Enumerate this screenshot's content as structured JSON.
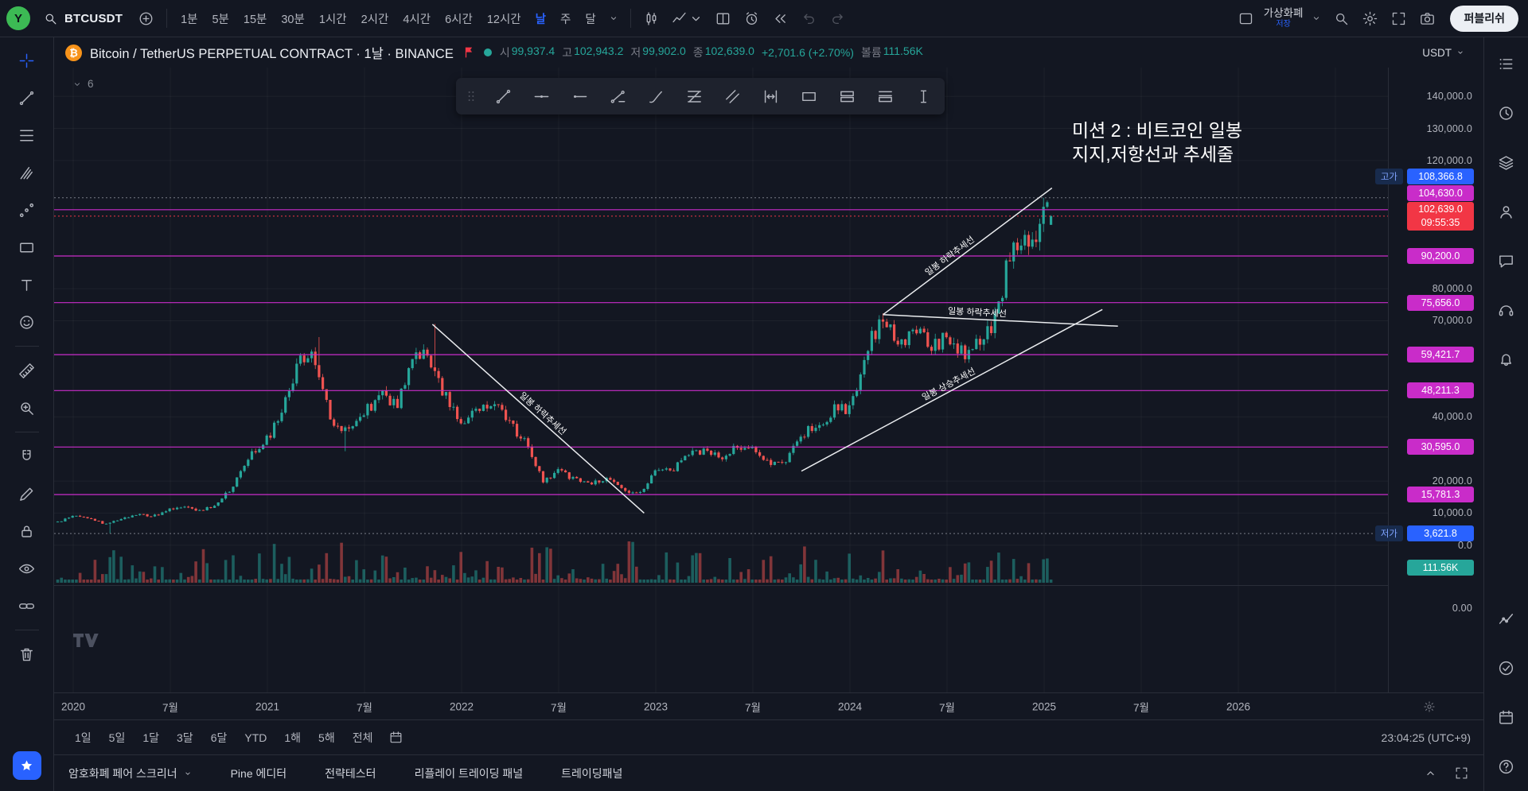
{
  "colors": {
    "accent": "#2962ff",
    "up": "#26a69a",
    "down": "#ef5350",
    "level": "#c92cc9",
    "last": "#f23645",
    "high_low": "#2962ff",
    "volume_badge": "#26a69a",
    "trendline": "#eaecef"
  },
  "topbar": {
    "avatar_letter": "Y",
    "symbol": "BTCUSDT",
    "intervals": [
      "1분",
      "5분",
      "15분",
      "30분",
      "1시간",
      "2시간",
      "4시간",
      "6시간",
      "12시간",
      "날",
      "주",
      "달"
    ],
    "active_interval": "날",
    "layout_name": "가상화폐",
    "save_label": "저장",
    "publish_label": "퍼블리쉬",
    "actions": [
      {
        "name": "chart-style-button",
        "icon": "candles"
      },
      {
        "name": "chart-type-button",
        "icon": "chart-style",
        "chevron": true
      },
      {
        "name": "multichart-layout-button",
        "icon": "grid-layout"
      },
      {
        "name": "alert-button",
        "icon": "alarm"
      },
      {
        "name": "bar-replay-button",
        "icon": "replay"
      },
      {
        "name": "undo-button",
        "icon": "undo",
        "disabled": true
      },
      {
        "name": "redo-button",
        "icon": "redo",
        "disabled": true
      }
    ],
    "utilities": [
      {
        "name": "quick-search-button",
        "icon": "search"
      },
      {
        "name": "chart-settings-button",
        "icon": "gear"
      },
      {
        "name": "fullscreen-button",
        "icon": "fullscreen"
      },
      {
        "name": "snapshot-button",
        "icon": "camera"
      }
    ]
  },
  "chart_header": {
    "symbol_icon": "₿",
    "title": "Bitcoin / TetherUS PERPETUAL CONTRACT · 1날 · BINANCE",
    "collapsed_count": "6",
    "currency": "USDT",
    "ohlc": {
      "o_label": "시",
      "o": "99,937.4",
      "h_label": "고",
      "h": "102,943.2",
      "l_label": "저",
      "l": "99,902.0",
      "c_label": "종",
      "c": "102,639.0",
      "chg": "+2,701.6 (+2.70%)",
      "vol_label": "볼륨",
      "vol": "111.56K"
    }
  },
  "annotation": {
    "line1": "미션 2 : 비트코인 일봉",
    "line2": "지지,저항선과 추세줄"
  },
  "left_toolbar": {
    "tools": [
      {
        "name": "crosshair-cursor",
        "icon": "crosshair",
        "active": true
      },
      {
        "name": "trend-line-tool",
        "icon": "trend-line"
      },
      {
        "name": "fib-retracement-tool",
        "icon": "fib"
      },
      {
        "name": "pattern-tool",
        "icon": "pitchfork"
      },
      {
        "name": "prediction-tool",
        "icon": "prediction"
      },
      {
        "name": "geometric-shapes-tool",
        "icon": "shapes"
      },
      {
        "name": "text-tool",
        "icon": "text-tool"
      },
      {
        "name": "emoji-tool",
        "icon": "emoji"
      },
      {
        "sep": true
      },
      {
        "name": "measure-tool",
        "icon": "ruler"
      },
      {
        "name": "zoom-tool",
        "icon": "zoom"
      },
      {
        "sep": true
      },
      {
        "name": "magnet-mode",
        "icon": "magnet"
      },
      {
        "name": "drawing-mode",
        "icon": "pencil"
      },
      {
        "name": "lock-drawings",
        "icon": "lock"
      },
      {
        "name": "hide-drawings",
        "icon": "eye"
      },
      {
        "name": "sync-drawings",
        "icon": "link"
      },
      {
        "sep": true
      },
      {
        "name": "remove-drawings",
        "icon": "trash"
      }
    ]
  },
  "floating_toolbar": {
    "tools": [
      {
        "name": "trend-line",
        "icon": "trend-line"
      },
      {
        "name": "horizontal-line",
        "icon": "hline"
      },
      {
        "name": "horizontal-ray",
        "icon": "hray"
      },
      {
        "name": "info-line",
        "icon": "info-line"
      },
      {
        "name": "brush",
        "icon": "brush"
      },
      {
        "name": "fib-retracement",
        "icon": "fib-ret"
      },
      {
        "name": "parallel-channel",
        "icon": "parallel"
      },
      {
        "name": "date-range",
        "icon": "date-range"
      },
      {
        "name": "rectangle",
        "icon": "rect-tool"
      },
      {
        "name": "long-position",
        "icon": "long-pos"
      },
      {
        "name": "short-position",
        "icon": "short-pos"
      },
      {
        "name": "text-cursor",
        "icon": "ibeam"
      }
    ]
  },
  "right_sidebar": {
    "top": [
      {
        "name": "watchlist",
        "icon": "watchlist"
      },
      {
        "name": "alerts",
        "icon": "clock"
      },
      {
        "name": "layers",
        "icon": "layers"
      },
      {
        "name": "profile",
        "icon": "person"
      },
      {
        "name": "chat",
        "icon": "chat"
      },
      {
        "name": "support",
        "icon": "headset"
      },
      {
        "name": "notifications",
        "icon": "bell"
      }
    ],
    "bottom": [
      {
        "name": "object-tree",
        "icon": "obj-tree"
      },
      {
        "name": "order-panel",
        "icon": "check-circle"
      },
      {
        "name": "calendar",
        "icon": "calendar"
      },
      {
        "name": "help",
        "icon": "help"
      }
    ]
  },
  "price_axis": {
    "ticks": [
      {
        "text": "140,000.0",
        "price": 140000
      },
      {
        "text": "130,000.0",
        "price": 130000
      },
      {
        "text": "120,000.0",
        "price": 120000
      },
      {
        "text": "80,000.0",
        "price": 80000
      },
      {
        "text": "70,000.0",
        "price": 70000
      },
      {
        "text": "40,000.0",
        "price": 40000
      },
      {
        "text": "20,000.0",
        "price": 20000
      },
      {
        "text": "10,000.0",
        "price": 10000
      },
      {
        "text": "0.0",
        "price": 0
      },
      {
        "text": "0.00",
        "y": 680
      }
    ],
    "badges": [
      {
        "kind": "high",
        "prefix": "고가",
        "text": "108,366.8",
        "price": 108366.8
      },
      {
        "kind": "level",
        "text": "104,630.0",
        "price": 104630
      },
      {
        "kind": "last",
        "text": "102,639.0",
        "sub": "09:55:35",
        "price": 102639
      },
      {
        "kind": "level",
        "text": "90,200.0",
        "price": 90200
      },
      {
        "kind": "level",
        "text": "75,656.0",
        "price": 75656
      },
      {
        "kind": "level",
        "text": "59,421.7",
        "price": 59421.7
      },
      {
        "kind": "level",
        "text": "48,211.3",
        "price": 48211.3
      },
      {
        "kind": "level",
        "text": "30,595.0",
        "price": 30595
      },
      {
        "kind": "level",
        "text": "15,781.3",
        "price": 15781.3
      },
      {
        "kind": "low",
        "prefix": "저가",
        "text": "3,621.8",
        "price": 3621.8
      },
      {
        "kind": "volume",
        "text": "111.56K"
      }
    ]
  },
  "x_axis": {
    "labels": [
      {
        "text": "2020",
        "t": 2020
      },
      {
        "text": "7월",
        "t": 2020.5
      },
      {
        "text": "2021",
        "t": 2021
      },
      {
        "text": "7월",
        "t": 2021.5
      },
      {
        "text": "2022",
        "t": 2022
      },
      {
        "text": "7월",
        "t": 2022.5
      },
      {
        "text": "2023",
        "t": 2023
      },
      {
        "text": "7월",
        "t": 2023.5
      },
      {
        "text": "2024",
        "t": 2024
      },
      {
        "text": "7월",
        "t": 2024.5
      },
      {
        "text": "2025",
        "t": 2025
      },
      {
        "text": "7월",
        "t": 2025.5
      },
      {
        "text": "2026",
        "t": 2026
      }
    ]
  },
  "range_bar": {
    "items": [
      "1일",
      "5일",
      "1달",
      "3달",
      "6달",
      "YTD",
      "1해",
      "5해",
      "전체"
    ],
    "clock": "23:04:25 (UTC+9)"
  },
  "bottom_tabs": {
    "tabs": [
      {
        "label": "암호화폐 페어 스크리너",
        "chevron": true
      },
      {
        "label": "Pine 에디터"
      },
      {
        "label": "전략테스터"
      },
      {
        "label": "리플레이 트레이딩 패널"
      },
      {
        "label": "트레이딩패널"
      }
    ]
  },
  "chart_data": {
    "type": "candlestick",
    "symbol": "BTCUSDT",
    "exchange": "BINANCE",
    "timeframe": "1날",
    "ylim": [
      0,
      145000
    ],
    "xlim": [
      2019.9,
      2026.8
    ],
    "monthly_closes": {
      "start": 2019.92,
      "step": "1/12 year",
      "values": [
        7300,
        9350,
        8550,
        6440,
        8630,
        9450,
        9140,
        11350,
        11650,
        10780,
        13800,
        19700,
        29000,
        33100,
        45200,
        58800,
        57700,
        37300,
        35000,
        41500,
        47100,
        43800,
        61300,
        57000,
        46200,
        38500,
        43200,
        45500,
        37600,
        31800,
        19900,
        23300,
        20050,
        19400,
        20500,
        17100,
        16500,
        23100,
        23500,
        28500,
        29200,
        27200,
        30500,
        29200,
        26000,
        26900,
        34600,
        37700,
        42200,
        42500,
        61200,
        71300,
        60600,
        67500,
        62700,
        64600,
        58900,
        63300,
        70200,
        96400,
        93400,
        102639
      ]
    },
    "support_resistance_levels": [
      104630,
      90200,
      75656,
      59421.7,
      48211.3,
      30595,
      15781.3
    ],
    "high_price": 108366.8,
    "low_price": 3621.8,
    "last_price": 102639.0,
    "day_open": 99937.4,
    "day_high": 102943.2,
    "day_low": 99902.0,
    "day_change": "+2,701.6 (+2.70%)",
    "day_volume": "111.56K",
    "trendlines": [
      {
        "label": "일봉 하락추세선",
        "x1": 2021.85,
        "p1": 68900,
        "x2": 2022.94,
        "p2": 10000,
        "label_pos": 0.5
      },
      {
        "label": "일봉 하락추세선",
        "x1": 2024.17,
        "p1": 71900,
        "x2": 2025.04,
        "p2": 111400,
        "label_pos": 0.42
      },
      {
        "label": "일봉 하락추세선",
        "x1": 2024.17,
        "p1": 71900,
        "x2": 2025.38,
        "p2": 68300,
        "label_pos": 0.4
      },
      {
        "label": "일봉 상승추세선",
        "x1": 2023.75,
        "p1": 23100,
        "x2": 2025.3,
        "p2": 73500,
        "label_pos": 0.5
      }
    ]
  }
}
